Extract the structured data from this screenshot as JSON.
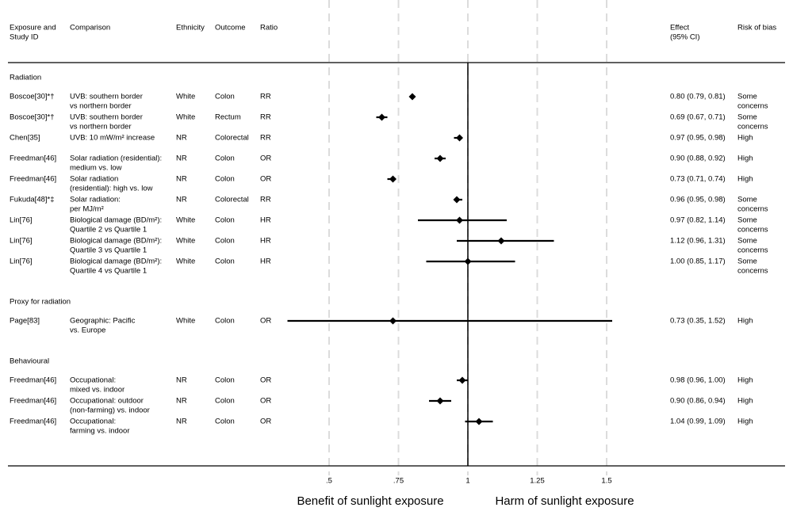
{
  "chart_data": {
    "type": "forest",
    "columns": {
      "study": [
        "Exposure and",
        "Study ID"
      ],
      "comparison": [
        "Comparison"
      ],
      "ethnicity": [
        "Ethnicity"
      ],
      "outcome": [
        "Outcome"
      ],
      "ratio": [
        "Ratio"
      ],
      "effect": [
        "Effect",
        "(95% CI)"
      ],
      "bias": [
        "Risk of bias"
      ]
    },
    "groups": [
      {
        "label": "Radiation",
        "rows": [
          {
            "study": "Boscoe[30]*†",
            "comparison": [
              "UVB: southern border",
              "vs northern border"
            ],
            "ethnicity": "White",
            "outcome": "Colon",
            "ratio": "RR",
            "estimate": 0.8,
            "lower": 0.79,
            "upper": 0.81,
            "effect": "0.80 (0.79, 0.81)",
            "bias": [
              "Some",
              "concerns"
            ]
          },
          {
            "study": "Boscoe[30]*†",
            "comparison": [
              "UVB: southern border",
              "vs northern border"
            ],
            "ethnicity": "White",
            "outcome": "Rectum",
            "ratio": "RR",
            "estimate": 0.69,
            "lower": 0.67,
            "upper": 0.71,
            "effect": "0.69 (0.67, 0.71)",
            "bias": [
              "Some",
              "concerns"
            ]
          },
          {
            "study": "Chen[35]",
            "comparison": [
              "UVB: 10 mW/m² increase"
            ],
            "ethnicity": "NR",
            "outcome": "Colorectal",
            "ratio": "RR",
            "estimate": 0.97,
            "lower": 0.95,
            "upper": 0.98,
            "effect": "0.97 (0.95, 0.98)",
            "bias": [
              "High"
            ]
          },
          {
            "study": "Freedman[46]",
            "comparison": [
              "Solar radiation (residential):",
              "medium vs. low"
            ],
            "ethnicity": "NR",
            "outcome": "Colon",
            "ratio": "OR",
            "estimate": 0.9,
            "lower": 0.88,
            "upper": 0.92,
            "effect": "0.90 (0.88, 0.92)",
            "bias": [
              "High"
            ]
          },
          {
            "study": "Freedman[46]",
            "comparison": [
              "Solar radiation",
              "(residential): high vs. low"
            ],
            "ethnicity": "NR",
            "outcome": "Colon",
            "ratio": "OR",
            "estimate": 0.73,
            "lower": 0.71,
            "upper": 0.74,
            "effect": "0.73 (0.71, 0.74)",
            "bias": [
              "High"
            ]
          },
          {
            "study": "Fukuda[48]*‡",
            "comparison": [
              "Solar radiation:",
              "per MJ/m²"
            ],
            "ethnicity": "NR",
            "outcome": "Colorectal",
            "ratio": "RR",
            "estimate": 0.96,
            "lower": 0.95,
            "upper": 0.98,
            "effect": "0.96 (0.95, 0.98)",
            "bias": [
              "Some",
              "concerns"
            ]
          },
          {
            "study": "Lin[76]",
            "comparison": [
              "Biological damage (BD/m²):",
              "Quartile 2 vs Quartile 1"
            ],
            "ethnicity": "White",
            "outcome": "Colon",
            "ratio": "HR",
            "estimate": 0.97,
            "lower": 0.82,
            "upper": 1.14,
            "effect": "0.97 (0.82, 1.14)",
            "bias": [
              "Some",
              "concerns"
            ]
          },
          {
            "study": "Lin[76]",
            "comparison": [
              "Biological damage (BD/m²):",
              "Quartile 3 vs Quartile 1"
            ],
            "ethnicity": "White",
            "outcome": "Colon",
            "ratio": "HR",
            "estimate": 1.12,
            "lower": 0.96,
            "upper": 1.31,
            "effect": "1.12 (0.96, 1.31)",
            "bias": [
              "Some",
              "concerns"
            ]
          },
          {
            "study": "Lin[76]",
            "comparison": [
              "Biological damage (BD/m²):",
              "Quartile 4 vs Quartile 1"
            ],
            "ethnicity": "White",
            "outcome": "Colon",
            "ratio": "HR",
            "estimate": 1.0,
            "lower": 0.85,
            "upper": 1.17,
            "effect": "1.00 (0.85, 1.17)",
            "bias": [
              "Some",
              "concerns"
            ]
          }
        ]
      },
      {
        "label": "Proxy for radiation",
        "rows": [
          {
            "study": "Page[83]",
            "comparison": [
              "Geographic: Pacific",
              "vs. Europe"
            ],
            "ethnicity": "White",
            "outcome": "Colon",
            "ratio": "OR",
            "estimate": 0.73,
            "lower": 0.35,
            "upper": 1.52,
            "effect": "0.73 (0.35, 1.52)",
            "bias": [
              "High"
            ]
          }
        ]
      },
      {
        "label": "Behavioural",
        "rows": [
          {
            "study": "Freedman[46]",
            "comparison": [
              "Occupational:",
              "mixed vs. indoor"
            ],
            "ethnicity": "NR",
            "outcome": "Colon",
            "ratio": "OR",
            "estimate": 0.98,
            "lower": 0.96,
            "upper": 1.0,
            "effect": "0.98 (0.96, 1.00)",
            "bias": [
              "High"
            ]
          },
          {
            "study": "Freedman[46]",
            "comparison": [
              "Occupational: outdoor",
              "(non-farming) vs. indoor"
            ],
            "ethnicity": "NR",
            "outcome": "Colon",
            "ratio": "OR",
            "estimate": 0.9,
            "lower": 0.86,
            "upper": 0.94,
            "effect": "0.90 (0.86, 0.94)",
            "bias": [
              "High"
            ]
          },
          {
            "study": "Freedman[46]",
            "comparison": [
              "Occupational:",
              "farming vs. indoor"
            ],
            "ethnicity": "NR",
            "outcome": "Colon",
            "ratio": "OR",
            "estimate": 1.04,
            "lower": 0.99,
            "upper": 1.09,
            "effect": "1.04 (0.99, 1.09)",
            "bias": [
              "High"
            ]
          }
        ]
      }
    ],
    "xlim": [
      0.3,
      1.6
    ],
    "xticks": [
      {
        "value": 0.5,
        "label": ".5"
      },
      {
        "value": 0.75,
        "label": ".75"
      },
      1,
      1.25,
      1.5
    ],
    "reference": 1,
    "grid": true,
    "color": "#000000",
    "annotations": [
      "Benefit of sunlight exposure",
      "Harm of sunlight exposure"
    ]
  }
}
